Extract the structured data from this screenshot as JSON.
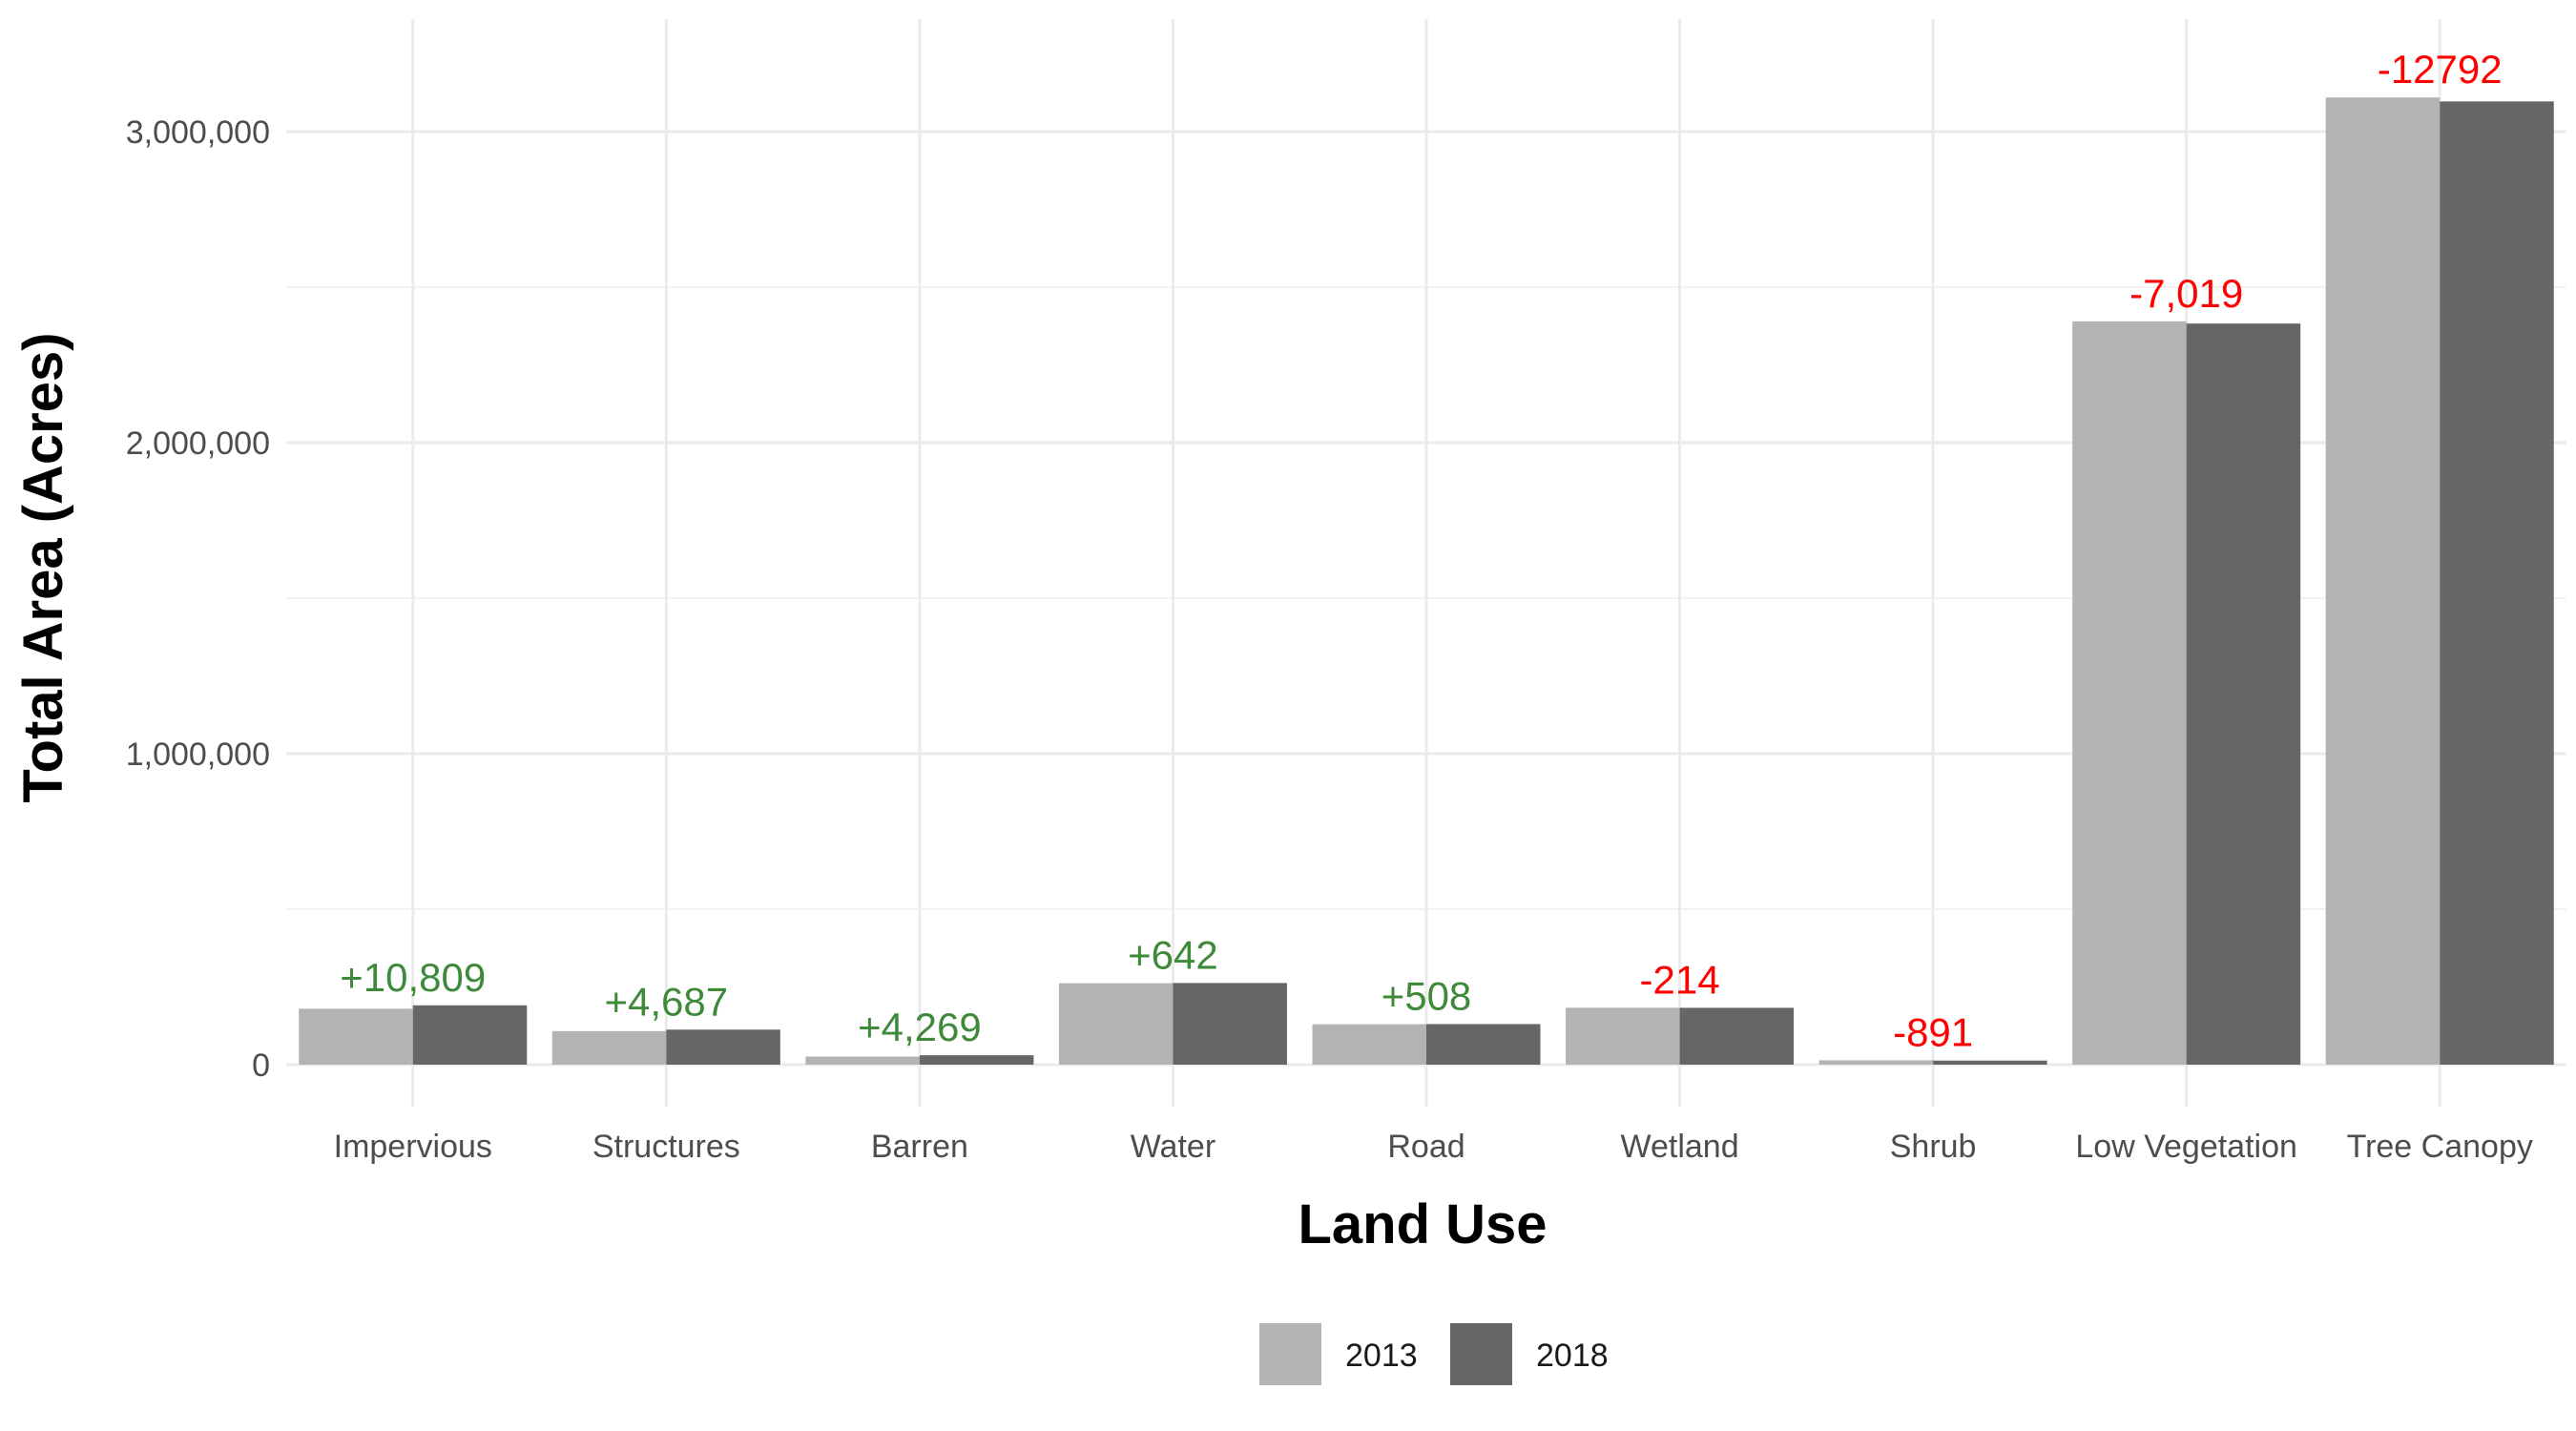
{
  "chart_data": {
    "type": "bar",
    "xlabel": "Land Use",
    "ylabel": "Total Area (Acres)",
    "categories": [
      "Impervious",
      "Structures",
      "Barren",
      "Water",
      "Road",
      "Wetland",
      "Shrub",
      "Low Vegetation",
      "Tree Canopy"
    ],
    "series": [
      {
        "name": "2013",
        "color": "#b3b3b3",
        "values": [
          180000,
          108000,
          26000,
          262000,
          130000,
          183000,
          14000,
          2390000,
          3110000
        ]
      },
      {
        "name": "2018",
        "color": "#666666",
        "values": [
          190809,
          112687,
          30269,
          262642,
          130508,
          182786,
          13109,
          2382981,
          3097208
        ]
      }
    ],
    "bar_labels": [
      {
        "text": "+10,809",
        "color": "#3f8a3a"
      },
      {
        "text": "+4,687",
        "color": "#3f8a3a"
      },
      {
        "text": "+4,269",
        "color": "#3f8a3a"
      },
      {
        "text": "+642",
        "color": "#3f8a3a"
      },
      {
        "text": "+508",
        "color": "#3f8a3a"
      },
      {
        "text": "-214",
        "color": "#ff0000"
      },
      {
        "text": "-891",
        "color": "#ff0000"
      },
      {
        "text": "-7,019",
        "color": "#ff0000"
      },
      {
        "text": "-12792",
        "color": "#ff0000"
      }
    ],
    "ylim": [
      -150000,
      3350000
    ],
    "yticks": [
      0,
      1000000,
      2000000,
      3000000
    ],
    "ytick_labels": [
      "0",
      "1,000,000",
      "2,000,000",
      "3,000,000"
    ],
    "grid": true,
    "legend_position": "bottom"
  }
}
